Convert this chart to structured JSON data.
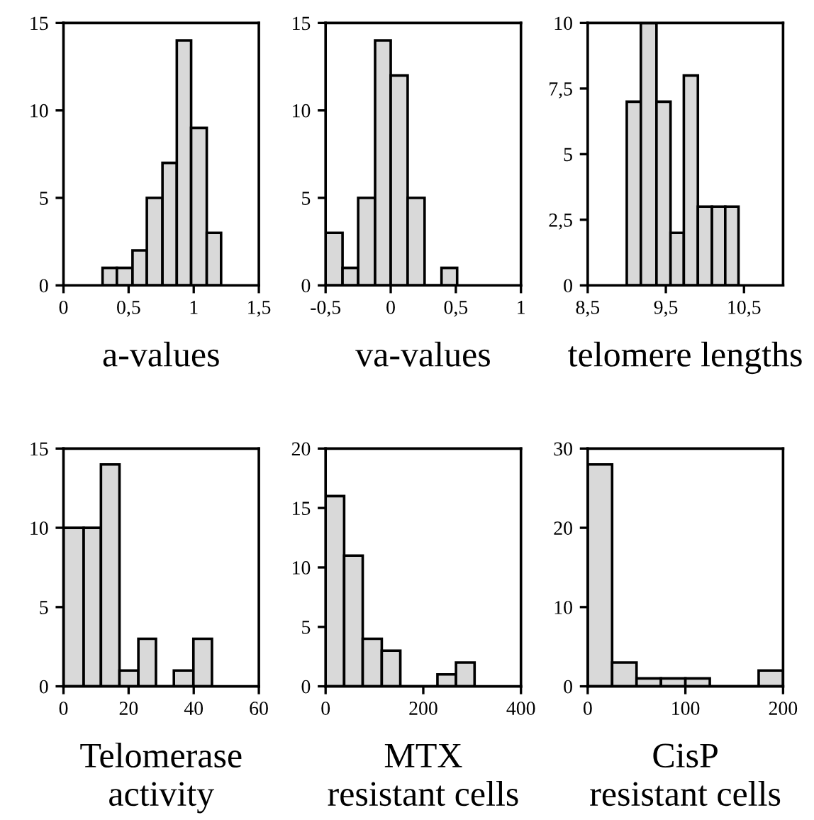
{
  "chart_data": [
    {
      "type": "histogram",
      "xlabel": "a-values",
      "bins": [
        0.3,
        0.41,
        0.53,
        0.64,
        0.76,
        0.87,
        0.98,
        1.1,
        1.21
      ],
      "values": [
        1,
        1,
        2,
        5,
        7,
        14,
        9,
        3
      ],
      "color": "#d9d9d9",
      "xlim": [
        0,
        1.5
      ],
      "xticks": [
        0,
        {
          "value": 0.5,
          "label": "0,5"
        },
        1,
        {
          "value": 1.5,
          "label": "1,5"
        }
      ],
      "ylim": [
        0,
        15
      ],
      "yticks": [
        0,
        5,
        10,
        15
      ],
      "grid": false
    },
    {
      "type": "histogram",
      "xlabel": "va-values",
      "bins": [
        -0.5,
        -0.37,
        -0.25,
        -0.12,
        0.0,
        0.13,
        0.26,
        0.39,
        0.51
      ],
      "values": [
        3,
        1,
        5,
        14,
        12,
        5,
        0,
        1
      ],
      "color": "#d9d9d9",
      "xlim": [
        -0.5,
        1
      ],
      "xticks": [
        {
          "value": -0.5,
          "label": "-0,5"
        },
        0,
        {
          "value": 0.5,
          "label": "0,5"
        },
        1
      ],
      "ylim": [
        0,
        15
      ],
      "yticks": [
        0,
        5,
        10,
        15
      ],
      "grid": false
    },
    {
      "type": "histogram",
      "xlabel": "telomere lengths",
      "bins": [
        9.0,
        9.18,
        9.38,
        9.56,
        9.73,
        9.91,
        10.09,
        10.26,
        10.43
      ],
      "values": [
        7,
        10,
        7,
        2,
        8,
        3,
        3,
        3
      ],
      "color": "#d9d9d9",
      "xlim": [
        8.5,
        11
      ],
      "xticks": [
        {
          "value": 8.5,
          "label": "8,5"
        },
        {
          "value": 9.5,
          "label": "9,5"
        },
        {
          "value": 10.5,
          "label": "10,5"
        }
      ],
      "ylim": [
        0,
        10
      ],
      "yticks": [
        0,
        {
          "value": 2.5,
          "label": "2,5"
        },
        5,
        {
          "value": 7.5,
          "label": "7,5"
        },
        10
      ],
      "grid": false
    },
    {
      "type": "histogram",
      "xlabel": "Telomerase\nactivity",
      "bins": [
        0,
        6.2,
        11.5,
        17.2,
        23,
        28.4,
        33.9,
        39.9,
        45.6
      ],
      "values": [
        10,
        10,
        14,
        1,
        3,
        0,
        1,
        3
      ],
      "color": "#d9d9d9",
      "xlim": [
        0,
        60
      ],
      "xticks": [
        0,
        20,
        40,
        60
      ],
      "ylim": [
        0,
        15
      ],
      "yticks": [
        0,
        5,
        10,
        15
      ],
      "grid": false
    },
    {
      "type": "histogram",
      "xlabel": "MTX\nresistant cells",
      "bins": [
        0,
        38,
        76,
        115,
        153,
        229,
        267,
        305
      ],
      "values": [
        16,
        11,
        4,
        3,
        0,
        1,
        2
      ],
      "color": "#d9d9d9",
      "xlim": [
        0,
        400
      ],
      "xticks": [
        0,
        200,
        400
      ],
      "ylim": [
        0,
        20
      ],
      "yticks": [
        0,
        5,
        10,
        15,
        20
      ],
      "grid": false
    },
    {
      "type": "histogram",
      "xlabel": "CisP\nresistant cells",
      "bins": [
        0,
        25,
        50,
        75,
        100,
        125,
        175,
        200
      ],
      "values": [
        28,
        3,
        1,
        1,
        1,
        0,
        2
      ],
      "color": "#d9d9d9",
      "xlim": [
        0,
        200
      ],
      "xticks": [
        0,
        100,
        200
      ],
      "ylim": [
        0,
        30
      ],
      "yticks": [
        0,
        10,
        20,
        30
      ],
      "grid": false
    }
  ]
}
